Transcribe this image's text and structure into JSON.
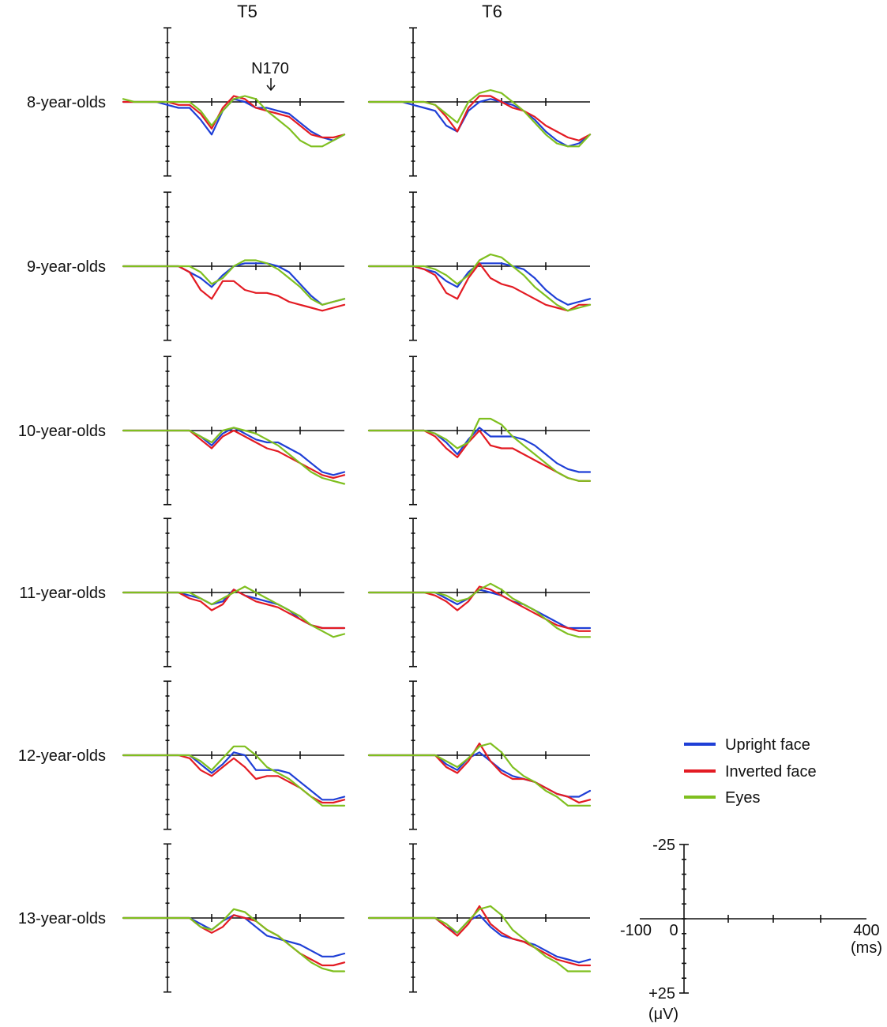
{
  "chart_data": {
    "type": "line",
    "columns": [
      "T5",
      "T6"
    ],
    "rows": [
      "8-year-olds",
      "9-year-olds",
      "10-year-olds",
      "11-year-olds",
      "12-year-olds",
      "13-year-olds"
    ],
    "annotation": "N170",
    "x_unit": "(ms)",
    "y_unit": "(μV)",
    "xlim": [
      -100,
      400
    ],
    "ylim": [
      -25,
      25
    ],
    "scale_bar": {
      "x_start": "-100",
      "x_zero": "0",
      "x_end": "400",
      "y_top": "-25",
      "y_bottom": "+25"
    },
    "x": [
      -100,
      -75,
      -50,
      -25,
      0,
      25,
      50,
      75,
      100,
      125,
      150,
      175,
      200,
      225,
      250,
      275,
      300,
      325,
      350,
      375,
      400
    ],
    "legend": [
      {
        "name": "Upright face",
        "color": "#1f3fd6"
      },
      {
        "name": "Inverted face",
        "color": "#e31b23"
      },
      {
        "name": "Eyes",
        "color": "#7fbf1f"
      }
    ],
    "series_note": "Amplitude in μV, negative plotted up (ERP convention)",
    "panels": [
      {
        "row": "8-year-olds",
        "col": "T5",
        "series": [
          {
            "name": "Upright face",
            "values": [
              0,
              0,
              0,
              0,
              1,
              2,
              2,
              6,
              11,
              3,
              -1,
              0,
              2,
              2,
              3,
              4,
              7,
              10,
              12,
              13,
              11
            ]
          },
          {
            "name": "Inverted face",
            "values": [
              0,
              0,
              0,
              0,
              0,
              1,
              1,
              4,
              9,
              2,
              -2,
              -1,
              2,
              3,
              4,
              5,
              8,
              11,
              12,
              12,
              11
            ]
          },
          {
            "name": "Eyes",
            "values": [
              -1,
              0,
              0,
              0,
              0,
              0,
              0,
              3,
              8,
              3,
              -1,
              -2,
              -1,
              3,
              6,
              9,
              13,
              15,
              15,
              13,
              11
            ]
          }
        ]
      },
      {
        "row": "8-year-olds",
        "col": "T6",
        "series": [
          {
            "name": "Upright face",
            "values": [
              0,
              0,
              0,
              0,
              1,
              2,
              3,
              8,
              10,
              3,
              0,
              -1,
              0,
              1,
              3,
              6,
              10,
              13,
              15,
              14,
              11
            ]
          },
          {
            "name": "Inverted face",
            "values": [
              0,
              0,
              0,
              0,
              0,
              0,
              1,
              5,
              10,
              2,
              -2,
              -2,
              0,
              2,
              3,
              5,
              8,
              10,
              12,
              13,
              11
            ]
          },
          {
            "name": "Eyes",
            "values": [
              0,
              0,
              0,
              0,
              0,
              0,
              1,
              4,
              7,
              0,
              -3,
              -4,
              -3,
              0,
              3,
              7,
              11,
              14,
              15,
              15,
              11
            ]
          }
        ]
      },
      {
        "row": "9-year-olds",
        "col": "T5",
        "series": [
          {
            "name": "Upright face",
            "values": [
              0,
              0,
              0,
              0,
              0,
              0,
              2,
              4,
              7,
              3,
              0,
              -1,
              -1,
              -1,
              0,
              2,
              6,
              10,
              13,
              12,
              11
            ]
          },
          {
            "name": "Inverted face",
            "values": [
              0,
              0,
              0,
              0,
              0,
              0,
              2,
              8,
              11,
              5,
              5,
              8,
              9,
              9,
              10,
              12,
              13,
              14,
              15,
              14,
              13
            ]
          },
          {
            "name": "Eyes",
            "values": [
              0,
              0,
              0,
              0,
              0,
              0,
              0,
              2,
              6,
              4,
              0,
              -2,
              -2,
              -1,
              1,
              4,
              7,
              11,
              13,
              12,
              11
            ]
          }
        ]
      },
      {
        "row": "9-year-olds",
        "col": "T6",
        "series": [
          {
            "name": "Upright face",
            "values": [
              0,
              0,
              0,
              0,
              0,
              1,
              2,
              5,
              7,
              2,
              -1,
              -1,
              -1,
              0,
              1,
              4,
              8,
              11,
              13,
              12,
              11
            ]
          },
          {
            "name": "Inverted face",
            "values": [
              0,
              0,
              0,
              0,
              0,
              1,
              3,
              9,
              11,
              4,
              -1,
              4,
              6,
              7,
              9,
              11,
              13,
              14,
              15,
              13,
              13
            ]
          },
          {
            "name": "Eyes",
            "values": [
              0,
              0,
              0,
              0,
              0,
              0,
              1,
              3,
              6,
              3,
              -2,
              -4,
              -3,
              0,
              3,
              7,
              10,
              13,
              15,
              14,
              13
            ]
          }
        ]
      },
      {
        "row": "10-year-olds",
        "col": "T5",
        "series": [
          {
            "name": "Upright face",
            "values": [
              0,
              0,
              0,
              0,
              0,
              0,
              0,
              2,
              5,
              1,
              -1,
              1,
              3,
              4,
              4,
              6,
              8,
              11,
              14,
              15,
              14
            ]
          },
          {
            "name": "Inverted face",
            "values": [
              0,
              0,
              0,
              0,
              0,
              0,
              0,
              3,
              6,
              2,
              0,
              2,
              4,
              6,
              7,
              9,
              11,
              13,
              15,
              16,
              15
            ]
          },
          {
            "name": "Eyes",
            "values": [
              0,
              0,
              0,
              0,
              0,
              0,
              0,
              2,
              4,
              0,
              -1,
              0,
              1,
              3,
              5,
              8,
              11,
              14,
              16,
              17,
              18
            ]
          }
        ]
      },
      {
        "row": "10-year-olds",
        "col": "T6",
        "series": [
          {
            "name": "Upright face",
            "values": [
              0,
              0,
              0,
              0,
              0,
              0,
              1,
              4,
              8,
              3,
              -1,
              2,
              2,
              2,
              3,
              5,
              8,
              11,
              13,
              14,
              14
            ]
          },
          {
            "name": "Inverted face",
            "values": [
              0,
              0,
              0,
              0,
              0,
              0,
              2,
              6,
              9,
              4,
              0,
              5,
              6,
              6,
              8,
              10,
              12,
              14,
              16,
              17,
              17
            ]
          },
          {
            "name": "Eyes",
            "values": [
              0,
              0,
              0,
              0,
              0,
              0,
              1,
              3,
              6,
              4,
              -4,
              -4,
              -2,
              2,
              5,
              8,
              11,
              14,
              16,
              17,
              17
            ]
          }
        ]
      },
      {
        "row": "11-year-olds",
        "col": "T5",
        "series": [
          {
            "name": "Upright face",
            "values": [
              0,
              0,
              0,
              0,
              0,
              0,
              1,
              2,
              4,
              3,
              -1,
              1,
              2,
              3,
              4,
              6,
              9,
              11,
              12,
              12,
              12
            ]
          },
          {
            "name": "Inverted face",
            "values": [
              0,
              0,
              0,
              0,
              0,
              0,
              2,
              3,
              6,
              4,
              -1,
              1,
              3,
              4,
              5,
              7,
              9,
              11,
              12,
              12,
              12
            ]
          },
          {
            "name": "Eyes",
            "values": [
              0,
              0,
              0,
              0,
              0,
              0,
              0,
              2,
              4,
              2,
              0,
              -2,
              0,
              2,
              4,
              6,
              8,
              11,
              13,
              15,
              14
            ]
          }
        ]
      },
      {
        "row": "11-year-olds",
        "col": "T6",
        "series": [
          {
            "name": "Upright face",
            "values": [
              0,
              0,
              0,
              0,
              0,
              0,
              0,
              2,
              4,
              2,
              -1,
              0,
              1,
              3,
              4,
              6,
              8,
              10,
              12,
              12,
              12
            ]
          },
          {
            "name": "Inverted face",
            "values": [
              0,
              0,
              0,
              0,
              0,
              0,
              1,
              3,
              6,
              3,
              -2,
              -1,
              1,
              3,
              5,
              7,
              9,
              11,
              12,
              13,
              13
            ]
          },
          {
            "name": "Eyes",
            "values": [
              0,
              0,
              0,
              0,
              0,
              0,
              0,
              1,
              3,
              2,
              -1,
              -3,
              -1,
              2,
              4,
              6,
              9,
              12,
              14,
              15,
              15
            ]
          }
        ]
      },
      {
        "row": "12-year-olds",
        "col": "T5",
        "series": [
          {
            "name": "Upright face",
            "values": [
              0,
              0,
              0,
              0,
              0,
              0,
              0,
              3,
              6,
              3,
              -1,
              0,
              5,
              5,
              5,
              6,
              9,
              12,
              15,
              15,
              14
            ]
          },
          {
            "name": "Inverted face",
            "values": [
              0,
              0,
              0,
              0,
              0,
              0,
              1,
              5,
              7,
              4,
              1,
              4,
              8,
              7,
              7,
              9,
              11,
              14,
              16,
              16,
              15
            ]
          },
          {
            "name": "Eyes",
            "values": [
              0,
              0,
              0,
              0,
              0,
              0,
              0,
              2,
              5,
              1,
              -3,
              -3,
              0,
              4,
              6,
              8,
              11,
              14,
              17,
              17,
              17
            ]
          }
        ]
      },
      {
        "row": "12-year-olds",
        "col": "T6",
        "series": [
          {
            "name": "Upright face",
            "values": [
              0,
              0,
              0,
              0,
              0,
              0,
              0,
              3,
              5,
              1,
              -1,
              2,
              5,
              7,
              8,
              9,
              11,
              13,
              14,
              14,
              12
            ]
          },
          {
            "name": "Inverted face",
            "values": [
              0,
              0,
              0,
              0,
              0,
              0,
              0,
              4,
              6,
              2,
              -4,
              2,
              6,
              8,
              8,
              9,
              11,
              13,
              14,
              16,
              15
            ]
          },
          {
            "name": "Eyes",
            "values": [
              0,
              0,
              0,
              0,
              0,
              0,
              0,
              2,
              4,
              1,
              -3,
              -4,
              -1,
              4,
              7,
              9,
              12,
              14,
              17,
              17,
              17
            ]
          }
        ]
      },
      {
        "row": "13-year-olds",
        "col": "T5",
        "series": [
          {
            "name": "Upright face",
            "values": [
              0,
              0,
              0,
              0,
              0,
              0,
              0,
              2,
              4,
              1,
              -1,
              0,
              3,
              6,
              7,
              8,
              9,
              11,
              13,
              13,
              12
            ]
          },
          {
            "name": "Inverted face",
            "values": [
              0,
              0,
              0,
              0,
              0,
              0,
              0,
              3,
              5,
              3,
              -1,
              0,
              1,
              4,
              6,
              9,
              12,
              14,
              16,
              16,
              15
            ]
          },
          {
            "name": "Eyes",
            "values": [
              0,
              0,
              0,
              0,
              0,
              0,
              0,
              3,
              4,
              1,
              -3,
              -2,
              1,
              4,
              6,
              9,
              12,
              15,
              17,
              18,
              18
            ]
          }
        ]
      },
      {
        "row": "13-year-olds",
        "col": "T6",
        "series": [
          {
            "name": "Upright face",
            "values": [
              0,
              0,
              0,
              0,
              0,
              0,
              0,
              3,
              5,
              1,
              -1,
              3,
              6,
              7,
              8,
              9,
              11,
              13,
              14,
              15,
              14
            ]
          },
          {
            "name": "Inverted face",
            "values": [
              0,
              0,
              0,
              0,
              0,
              0,
              0,
              3,
              6,
              2,
              -4,
              2,
              5,
              7,
              8,
              10,
              12,
              14,
              15,
              16,
              16
            ]
          },
          {
            "name": "Eyes",
            "values": [
              0,
              0,
              0,
              0,
              0,
              0,
              0,
              2,
              5,
              1,
              -3,
              -4,
              -1,
              4,
              7,
              10,
              13,
              15,
              18,
              18,
              18
            ]
          }
        ]
      }
    ]
  }
}
